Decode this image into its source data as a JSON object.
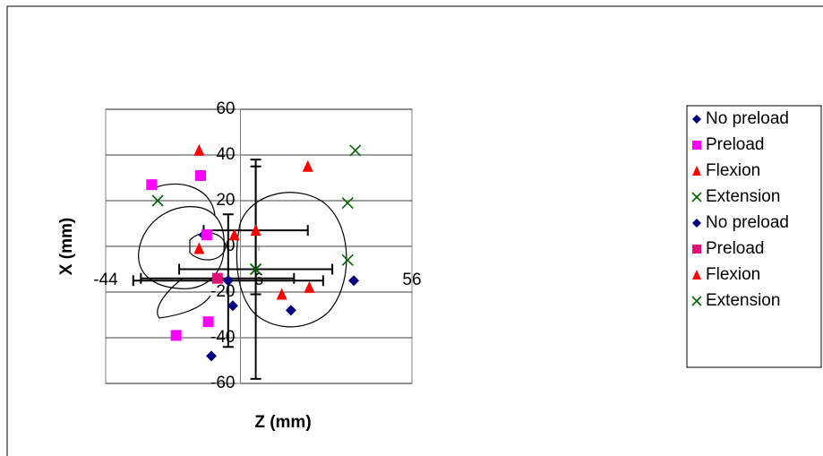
{
  "chart_data": {
    "type": "scatter",
    "x_label": "Z (mm)",
    "y_label": "X (mm)",
    "xlim": [
      -44,
      56
    ],
    "xticks": [
      -44,
      6,
      56
    ],
    "ylim": [
      -60,
      60
    ],
    "yticks": [
      -60,
      -40,
      -20,
      0,
      20,
      40,
      60
    ],
    "grid": true,
    "legend": "right",
    "series": [
      {
        "name": "No preload",
        "color": "#000080",
        "marker": "diamond",
        "x": [
          37,
          -2.5,
          16.5,
          -9.5,
          -12,
          -4
        ],
        "y": [
          -15,
          -26,
          -28,
          -48,
          5,
          -15
        ]
      },
      {
        "name": "Preload",
        "color": "#ff00ff",
        "marker": "square",
        "x": [
          -29,
          -13,
          -10.5,
          -21,
          -11
        ],
        "y": [
          27,
          31,
          -33,
          -39,
          5
        ]
      },
      {
        "name": "Flexion",
        "color": "#ff0000",
        "marker": "triangle",
        "x": [
          -13.5,
          22,
          -13.5,
          -2,
          13.5,
          22.5
        ],
        "y": [
          42,
          35,
          -1,
          5,
          -21,
          -18
        ]
      },
      {
        "name": "Extension",
        "color": "#006400",
        "marker": "x",
        "x": [
          37.5,
          35,
          35,
          5,
          -27
        ],
        "y": [
          42,
          19,
          -6,
          -10,
          20
        ]
      },
      {
        "name": "No preload",
        "color": "#000080",
        "marker": "diamond",
        "x": [
          -4
        ],
        "y": [
          -15
        ],
        "x_error": [
          31
        ],
        "y_error": [
          29
        ]
      },
      {
        "name": "Preload",
        "color": "#e0107a",
        "marker": "square",
        "x": [
          -7.5
        ],
        "y": [
          -14
        ],
        "x_error": [
          25
        ],
        "y_error": [
          0
        ]
      },
      {
        "name": "Flexion",
        "color": "#ff0000",
        "marker": "triangle",
        "x": [
          5
        ],
        "y": [
          7
        ],
        "x_error": [
          17
        ],
        "y_error": [
          28
        ]
      },
      {
        "name": "Extension",
        "color": "#006400",
        "marker": "x",
        "x": [
          5
        ],
        "y": [
          -10
        ],
        "x_error": [
          25
        ],
        "y_error": [
          48
        ]
      }
    ]
  }
}
